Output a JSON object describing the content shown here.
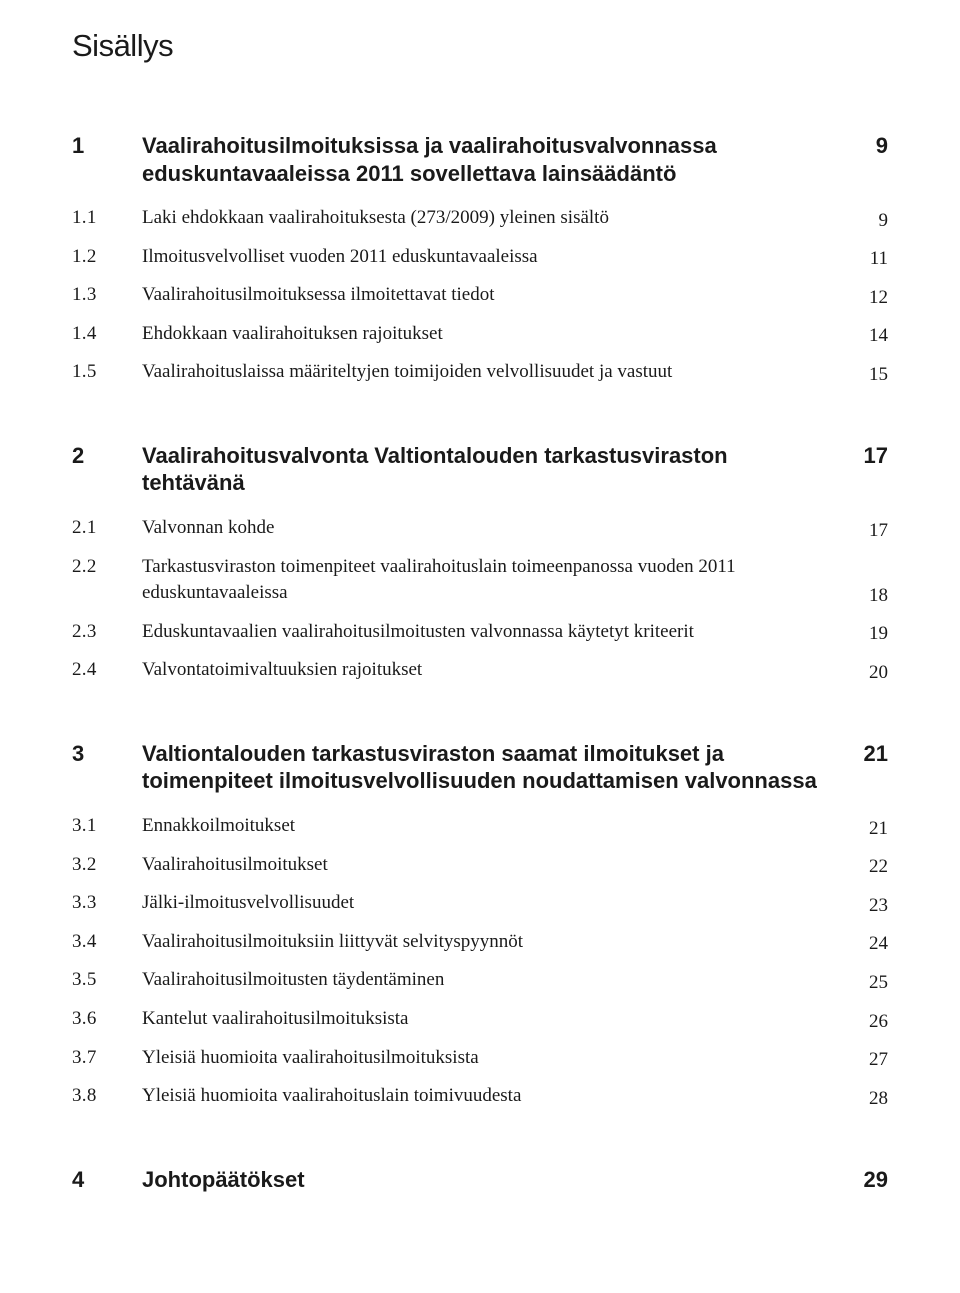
{
  "title": "Sisällys",
  "colors": {
    "background": "#ffffff",
    "text": "#1a1a1a"
  },
  "typography": {
    "heading_family": "Arial",
    "body_family": "Georgia",
    "title_size_pt": 23,
    "section_size_pt": 17,
    "sub_size_pt": 14
  },
  "toc": [
    {
      "num": "1",
      "title": "Vaalirahoitusilmoituksissa ja vaalirahoitusvalvonnassa eduskuntavaaleissa 2011 sovellettava lainsäädäntö",
      "page": "9",
      "items": [
        {
          "num": "1.1",
          "title": "Laki ehdokkaan vaalirahoituksesta (273/2009) yleinen sisältö",
          "page": "9"
        },
        {
          "num": "1.2",
          "title": "Ilmoitusvelvolliset vuoden 2011 eduskuntavaaleissa",
          "page": "11"
        },
        {
          "num": "1.3",
          "title": "Vaalirahoitusilmoituksessa ilmoitettavat tiedot",
          "page": "12"
        },
        {
          "num": "1.4",
          "title": "Ehdokkaan vaalirahoituksen rajoitukset",
          "page": "14"
        },
        {
          "num": "1.5",
          "title": "Vaalirahoituslaissa määriteltyjen toimijoiden velvollisuudet ja vastuut",
          "page": "15"
        }
      ]
    },
    {
      "num": "2",
      "title": "Vaalirahoitusvalvonta Valtiontalouden tarkastusviraston tehtävänä",
      "page": "17",
      "items": [
        {
          "num": "2.1",
          "title": "Valvonnan kohde",
          "page": "17"
        },
        {
          "num": "2.2",
          "title": "Tarkastusviraston toimenpiteet vaalirahoituslain toimeenpanossa vuoden 2011 eduskuntavaaleissa",
          "page": "18"
        },
        {
          "num": "2.3",
          "title": "Eduskuntavaalien vaalirahoitusilmoitusten valvonnassa käytetyt kriteerit",
          "page": "19"
        },
        {
          "num": "2.4",
          "title": "Valvontatoimivaltuuksien rajoitukset",
          "page": "20"
        }
      ]
    },
    {
      "num": "3",
      "title": "Valtiontalouden tarkastusviraston saamat ilmoitukset ja toimenpiteet ilmoitusvelvollisuuden noudattamisen valvonnassa",
      "page": "21",
      "items": [
        {
          "num": "3.1",
          "title": "Ennakkoilmoitukset",
          "page": "21"
        },
        {
          "num": "3.2",
          "title": "Vaalirahoitusilmoitukset",
          "page": "22"
        },
        {
          "num": "3.3",
          "title": "Jälki-ilmoitusvelvollisuudet",
          "page": "23"
        },
        {
          "num": "3.4",
          "title": "Vaalirahoitusilmoituksiin liittyvät selvityspyynnöt",
          "page": "24"
        },
        {
          "num": "3.5",
          "title": "Vaalirahoitusilmoitusten täydentäminen",
          "page": "25"
        },
        {
          "num": "3.6",
          "title": "Kantelut vaalirahoitusilmoituksista",
          "page": "26"
        },
        {
          "num": "3.7",
          "title": "Yleisiä huomioita vaalirahoitusilmoituksista",
          "page": "27"
        },
        {
          "num": "3.8",
          "title": "Yleisiä huomioita vaalirahoituslain toimivuudesta",
          "page": "28"
        }
      ]
    },
    {
      "num": "4",
      "title": "Johtopäätökset",
      "page": "29",
      "items": []
    }
  ]
}
